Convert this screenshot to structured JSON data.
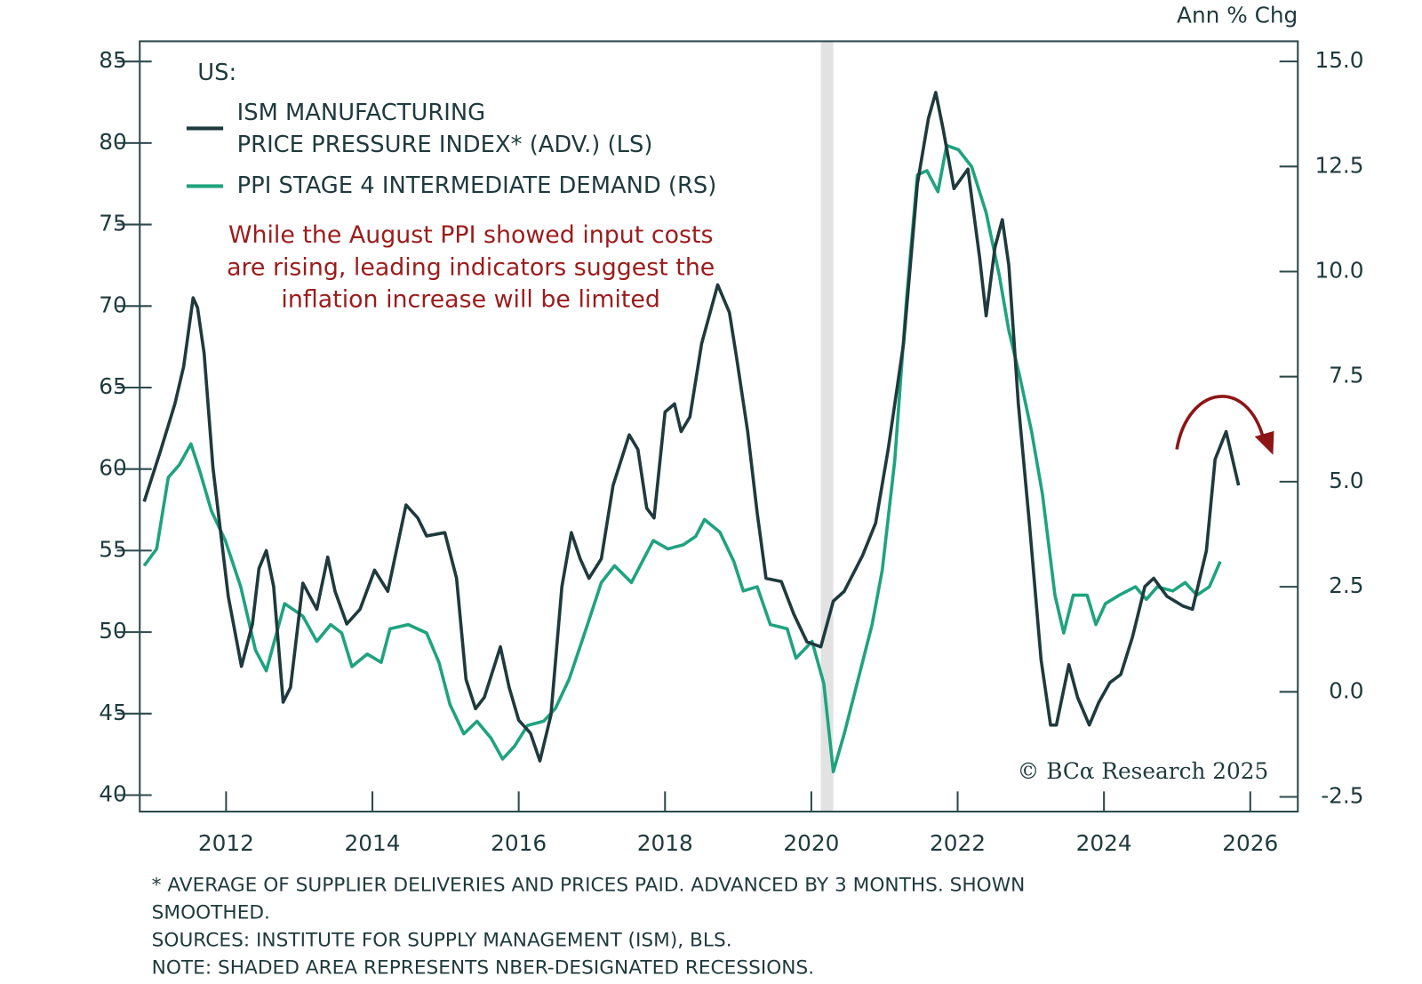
{
  "chart_data": {
    "type": "line",
    "y2_title": "Ann % Chg",
    "legend_title": "US:",
    "annotation": "While the August PPI showed input costs\nare rising, leading indicators suggest the\ninflation increase will be limited",
    "copyright": "© BCα Research 2025",
    "notes": [
      "* AVERAGE OF SUPPLIER DELIVERIES AND PRICES PAID. ADVANCED BY 3 MONTHS. SHOWN\nSMOOTHED.",
      "SOURCES: INSTITUTE FOR SUPPLY MANAGEMENT (ISM), BLS.",
      "NOTE: SHADED AREA REPRESENTS NBER-DESIGNATED RECESSIONS."
    ],
    "recessions": [
      [
        2020.13,
        2020.3
      ]
    ],
    "recession_color": "#e2e2e2",
    "xlim": [
      2010.82,
      2026.65
    ],
    "xticks": [
      2012,
      2014,
      2016,
      2018,
      2020,
      2022,
      2024,
      2026
    ],
    "ylim": [
      38.99,
      86.24
    ],
    "yticks": [
      40,
      45,
      50,
      55,
      60,
      65,
      70,
      75,
      80,
      85
    ],
    "y2lim": [
      -2.85,
      15.48
    ],
    "y2ticks": [
      {
        "value": 15,
        "label": "15.0"
      },
      12.5,
      {
        "value": 10,
        "label": "10.0"
      },
      7.5,
      {
        "value": 5,
        "label": "5.0"
      },
      2.5,
      {
        "value": 0,
        "label": "0.0"
      },
      -2.5
    ],
    "series": [
      {
        "name": "ISM MANUFACTURING\nPRICE PRESSURE INDEX* (ADV.) (LS)",
        "color": "#1f3a3d",
        "axis": "y",
        "x": [
          2010.88,
          2011.11,
          2011.3,
          2011.42,
          2011.55,
          2011.61,
          2011.7,
          2011.82,
          2012.03,
          2012.21,
          2012.36,
          2012.45,
          2012.55,
          2012.65,
          2012.78,
          2012.88,
          2013.05,
          2013.24,
          2013.39,
          2013.49,
          2013.65,
          2013.83,
          2014.03,
          2014.21,
          2014.46,
          2014.62,
          2014.74,
          2014.99,
          2015.15,
          2015.28,
          2015.41,
          2015.53,
          2015.75,
          2015.87,
          2016.0,
          2016.16,
          2016.29,
          2016.44,
          2016.59,
          2016.72,
          2016.84,
          2016.96,
          2017.13,
          2017.29,
          2017.51,
          2017.63,
          2017.75,
          2017.85,
          2018.0,
          2018.13,
          2018.22,
          2018.34,
          2018.5,
          2018.72,
          2018.88,
          2018.98,
          2019.13,
          2019.26,
          2019.38,
          2019.59,
          2019.76,
          2019.94,
          2020.13,
          2020.3,
          2020.45,
          2020.7,
          2020.88,
          2021.05,
          2021.26,
          2021.45,
          2021.6,
          2021.7,
          2021.8,
          2021.95,
          2022.14,
          2022.3,
          2022.39,
          2022.51,
          2022.61,
          2022.7,
          2022.83,
          2022.98,
          2023.14,
          2023.27,
          2023.35,
          2023.52,
          2023.64,
          2023.8,
          2023.93,
          2024.08,
          2024.23,
          2024.39,
          2024.56,
          2024.68,
          2024.86,
          2025.08,
          2025.21,
          2025.4,
          2025.52,
          2025.67,
          2025.84
        ],
        "values": [
          58.0,
          61.2,
          64.0,
          66.3,
          70.5,
          69.9,
          67.1,
          60.1,
          52.2,
          47.9,
          50.5,
          53.9,
          55.0,
          52.8,
          45.7,
          46.6,
          53.0,
          51.4,
          54.6,
          52.5,
          50.5,
          51.4,
          53.8,
          52.5,
          57.8,
          57.0,
          55.9,
          56.1,
          53.3,
          47.1,
          45.3,
          46.0,
          49.1,
          46.6,
          44.6,
          43.8,
          42.1,
          44.9,
          52.8,
          56.1,
          54.5,
          53.3,
          54.5,
          59.0,
          62.1,
          61.2,
          57.6,
          57.0,
          63.5,
          64.0,
          62.3,
          63.2,
          67.7,
          71.3,
          69.6,
          66.8,
          62.3,
          57.3,
          53.3,
          53.1,
          51.1,
          49.4,
          49.1,
          51.9,
          52.5,
          54.7,
          56.7,
          61.2,
          67.7,
          77.5,
          81.5,
          83.1,
          80.9,
          77.2,
          78.4,
          73.0,
          69.4,
          73.6,
          75.3,
          72.5,
          64.0,
          56.7,
          48.3,
          44.3,
          44.3,
          48.0,
          46.0,
          44.3,
          45.7,
          46.9,
          47.4,
          49.7,
          52.8,
          53.3,
          52.2,
          51.6,
          51.4,
          55.0,
          60.6,
          62.3,
          59.0
        ]
      },
      {
        "name": "PPI STAGE 4 INTERMEDIATE DEMAND (RS)",
        "color": "#1fa37f",
        "axis": "y2",
        "x": [
          2010.88,
          2011.05,
          2011.21,
          2011.36,
          2011.52,
          2011.65,
          2011.8,
          2011.99,
          2012.2,
          2012.4,
          2012.55,
          2012.8,
          2013.05,
          2013.24,
          2013.43,
          2013.58,
          2013.72,
          2013.93,
          2014.12,
          2014.24,
          2014.49,
          2014.74,
          2014.91,
          2015.06,
          2015.25,
          2015.43,
          2015.62,
          2015.78,
          2015.94,
          2016.12,
          2016.34,
          2016.5,
          2016.69,
          2016.94,
          2017.13,
          2017.31,
          2017.54,
          2017.69,
          2017.84,
          2018.04,
          2018.25,
          2018.42,
          2018.54,
          2018.75,
          2018.94,
          2019.07,
          2019.26,
          2019.44,
          2019.67,
          2019.79,
          2020.01,
          2020.17,
          2020.3,
          2020.45,
          2020.64,
          2020.83,
          2020.97,
          2021.14,
          2021.3,
          2021.45,
          2021.58,
          2021.73,
          2021.85,
          2022.01,
          2022.19,
          2022.39,
          2022.57,
          2022.7,
          2022.85,
          2023.01,
          2023.16,
          2023.33,
          2023.45,
          2023.58,
          2023.77,
          2023.89,
          2024.02,
          2024.21,
          2024.43,
          2024.58,
          2024.73,
          2024.94,
          2025.11,
          2025.27,
          2025.44,
          2025.59
        ],
        "values": [
          3.0,
          3.4,
          5.1,
          5.4,
          5.9,
          5.2,
          4.3,
          3.6,
          2.5,
          1.0,
          0.5,
          2.1,
          1.8,
          1.2,
          1.6,
          1.4,
          0.6,
          0.9,
          0.7,
          1.5,
          1.6,
          1.4,
          0.7,
          -0.3,
          -1.0,
          -0.7,
          -1.1,
          -1.6,
          -1.3,
          -0.8,
          -0.7,
          -0.4,
          0.3,
          1.6,
          2.6,
          3.0,
          2.6,
          3.1,
          3.6,
          3.4,
          3.5,
          3.7,
          4.1,
          3.8,
          3.1,
          2.4,
          2.5,
          1.6,
          1.5,
          0.8,
          1.2,
          0.2,
          -1.9,
          -1.0,
          0.3,
          1.6,
          2.9,
          5.5,
          9.3,
          12.3,
          12.4,
          11.9,
          13.0,
          12.9,
          12.5,
          11.4,
          9.9,
          8.6,
          7.5,
          6.2,
          4.7,
          2.3,
          1.4,
          2.3,
          2.3,
          1.6,
          2.1,
          2.3,
          2.5,
          2.2,
          2.5,
          2.4,
          2.6,
          2.3,
          2.5,
          3.1
        ]
      }
    ]
  }
}
